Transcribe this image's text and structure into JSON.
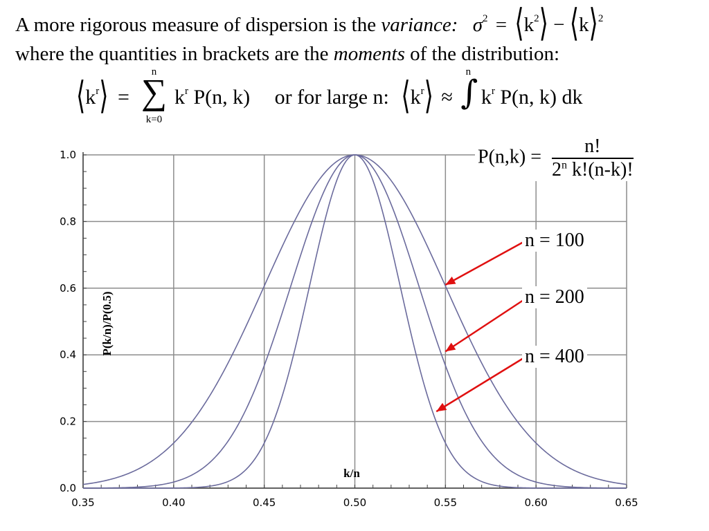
{
  "text": {
    "line1_prefix": "A more rigorous measure of dispersion is the ",
    "line1_italic": "variance:",
    "variance_sigma": "σ",
    "variance_sq": "2",
    "variance_eq": "=",
    "variance_k": "k",
    "variance_minus": "−",
    "line2_prefix": "where the quantities in brackets are the ",
    "line2_italic": "moments",
    "line2_suffix": " of the distribution:",
    "moment_k": "k",
    "moment_r": "r",
    "moment_eq": "=",
    "sum_symbol": "∑",
    "sum_upper": "n",
    "sum_lower": "k=0",
    "moment_term": "P(n, k)",
    "large_n": "or for large n:",
    "approx": "≈",
    "int_symbol": "∫",
    "int_upper": "n",
    "int_term": "P(n, k) dk",
    "pnk_lhs": "P(n,k) =",
    "pnk_num": "n!",
    "pnk_den_base": "2",
    "pnk_den_exp": "n",
    "pnk_den_rest": " k!(n-k)!"
  },
  "colors": {
    "curve": "#6a6a9c",
    "arrow": "#e01010",
    "grid": "#8c8c8c",
    "axis": "#404040"
  },
  "chart_data": {
    "type": "line",
    "xlabel": "k/n",
    "ylabel": "P(k/n)/P(0.5)",
    "xlim": [
      0.35,
      0.65
    ],
    "ylim": [
      0.0,
      1.0
    ],
    "xticks": [
      "0.35",
      "0.40",
      "0.45",
      "0.50",
      "0.55",
      "0.60",
      "0.65"
    ],
    "yticks": [
      "0.0",
      "0.2",
      "0.4",
      "0.6",
      "0.8",
      "1.0"
    ],
    "grid": true,
    "series": [
      {
        "name": "n = 100",
        "n": 100
      },
      {
        "name": "n = 200",
        "n": 200
      },
      {
        "name": "n = 400",
        "n": 400
      }
    ],
    "annotations": [
      {
        "label": "n = 100",
        "points_to": [
          0.55,
          0.61
        ]
      },
      {
        "label": "n = 200",
        "points_to": [
          0.55,
          0.41
        ]
      },
      {
        "label": "n = 400",
        "points_to": [
          0.545,
          0.23
        ]
      }
    ]
  }
}
